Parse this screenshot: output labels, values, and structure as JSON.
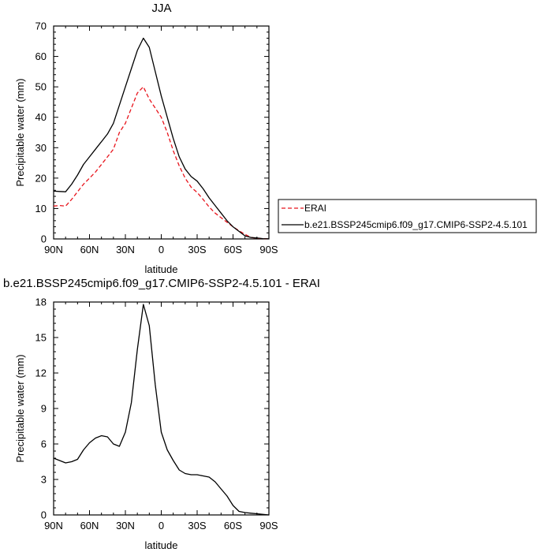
{
  "chart_data": [
    {
      "type": "line",
      "title": "JJA",
      "xlabel": "latitude",
      "ylabel": "Precipitable water (mm)",
      "xlim": [
        90,
        -90
      ],
      "ylim": [
        0,
        70
      ],
      "x_ticks": [
        90,
        60,
        30,
        0,
        -30,
        -60,
        -90
      ],
      "x_tick_labels": [
        "90N",
        "60N",
        "30N",
        "0",
        "30S",
        "60S",
        "90S"
      ],
      "y_ticks": [
        0,
        10,
        20,
        30,
        40,
        50,
        60,
        70
      ],
      "y_tick_labels": [
        "0",
        "10",
        "20",
        "30",
        "40",
        "50",
        "60",
        "70"
      ],
      "grid": false,
      "legend_position": "right",
      "series": [
        {
          "name": "ERAI",
          "color": "#e8141c",
          "dash": "dashed",
          "x": [
            90,
            85,
            80,
            75,
            70,
            65,
            60,
            55,
            50,
            45,
            40,
            35,
            30,
            25,
            20,
            15,
            10,
            5,
            0,
            -5,
            -10,
            -15,
            -20,
            -25,
            -30,
            -35,
            -40,
            -45,
            -50,
            -55,
            -60,
            -65,
            -70,
            -75,
            -80,
            -85,
            -90
          ],
          "values": [
            10.8,
            11,
            10.8,
            13,
            15.5,
            18,
            20,
            22,
            24.5,
            27,
            29.5,
            35,
            38,
            43,
            48,
            50,
            46,
            43,
            40,
            35,
            29,
            24,
            20,
            17,
            15.3,
            13,
            10.5,
            8.5,
            7,
            5.5,
            4,
            2.7,
            1.5,
            0.5,
            0.2,
            0.1,
            0.05
          ]
        },
        {
          "name": "b.e21.BSSP245cmip6.f09_g17.CMIP6-SSP2-4.5.101",
          "color": "#000000",
          "dash": "solid",
          "x": [
            90,
            85,
            80,
            75,
            70,
            65,
            60,
            55,
            50,
            45,
            40,
            35,
            30,
            25,
            20,
            15,
            10,
            5,
            0,
            -5,
            -10,
            -15,
            -20,
            -25,
            -30,
            -35,
            -40,
            -45,
            -50,
            -55,
            -60,
            -65,
            -70,
            -75,
            -80,
            -85,
            -90
          ],
          "values": [
            15.7,
            15.6,
            15.5,
            18,
            21,
            24.5,
            27,
            29.5,
            32,
            34.5,
            38,
            44,
            50,
            56,
            62,
            66,
            63,
            55,
            47,
            40,
            33,
            27,
            23,
            20.5,
            19,
            16.5,
            13.5,
            11,
            8.5,
            6,
            4,
            2.5,
            1,
            0.5,
            0.3,
            0.1,
            0.05
          ]
        }
      ]
    },
    {
      "type": "line",
      "title": "b.e21.BSSP245cmip6.f09_g17.CMIP6-SSP2-4.5.101 - ERAI",
      "xlabel": "latitude",
      "ylabel": "Precipitable water (mm)",
      "xlim": [
        90,
        -90
      ],
      "ylim": [
        0,
        18
      ],
      "x_ticks": [
        90,
        60,
        30,
        0,
        -30,
        -60,
        -90
      ],
      "x_tick_labels": [
        "90N",
        "60N",
        "30N",
        "0",
        "30S",
        "60S",
        "90S"
      ],
      "y_ticks": [
        0,
        3,
        6,
        9,
        12,
        15,
        18
      ],
      "y_tick_labels": [
        "0",
        "3",
        "6",
        "9",
        "12",
        "15",
        "18"
      ],
      "grid": false,
      "series": [
        {
          "color": "#000000",
          "dash": "solid",
          "x": [
            90,
            85,
            80,
            75,
            70,
            65,
            60,
            55,
            50,
            45,
            40,
            35,
            30,
            25,
            20,
            15,
            10,
            5,
            0,
            -5,
            -10,
            -15,
            -20,
            -25,
            -30,
            -35,
            -40,
            -45,
            -50,
            -55,
            -60,
            -65,
            -70,
            -75,
            -80,
            -85,
            -90
          ],
          "values": [
            4.8,
            4.6,
            4.4,
            4.5,
            4.7,
            5.5,
            6.1,
            6.5,
            6.7,
            6.6,
            6.0,
            5.8,
            7.0,
            9.5,
            14,
            17.8,
            16,
            11,
            7.0,
            5.5,
            4.6,
            3.8,
            3.5,
            3.4,
            3.4,
            3.3,
            3.2,
            2.8,
            2.2,
            1.6,
            0.8,
            0.3,
            0.2,
            0.15,
            0.1,
            0.05,
            0.0
          ]
        }
      ]
    }
  ]
}
